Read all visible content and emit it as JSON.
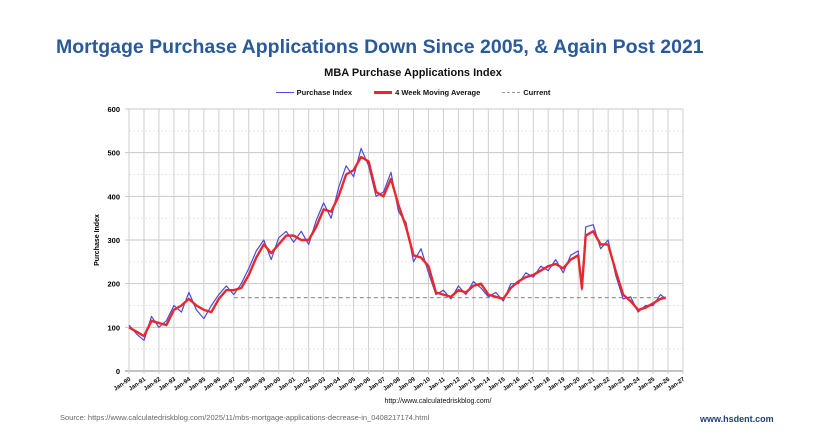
{
  "headline": "Mortgage Purchase Applications Down Since 2005, & Again Post 2021",
  "source": "Source: https://www.calculatedriskblog.com/2025/11/mbs-mortgage-applications-decrease-in_0408217174.html",
  "brand": "www.hsdent.com",
  "chart_data": {
    "type": "line",
    "title": "MBA Purchase Applications Index",
    "xlabel": "http://www.calculatedriskblog.com/",
    "ylabel": "Purchase Index",
    "ylim": [
      0,
      600
    ],
    "yticks": [
      0,
      100,
      200,
      300,
      400,
      500,
      600
    ],
    "xlim": [
      1990,
      2027
    ],
    "xtick_labels": [
      "Jan-90",
      "Jan-91",
      "Jan-92",
      "Jan-93",
      "Jan-94",
      "Jan-95",
      "Jan-96",
      "Jan-97",
      "Jan-98",
      "Jan-99",
      "Jan-00",
      "Jan-01",
      "Jan-02",
      "Jan-03",
      "Jan-04",
      "Jan-05",
      "Jan-06",
      "Jan-07",
      "Jan-08",
      "Jan-09",
      "Jan-10",
      "Jan-11",
      "Jan-12",
      "Jan-13",
      "Jan-14",
      "Jan-15",
      "Jan-16",
      "Jan-17",
      "Jan-18",
      "Jan-19",
      "Jan-20",
      "Jan-21",
      "Jan-22",
      "Jan-23",
      "Jan-24",
      "Jan-25",
      "Jan-26",
      "Jan-27"
    ],
    "grid": true,
    "legend_placement": "top-center",
    "x": [
      1990,
      1990.5,
      1991,
      1991.5,
      1992,
      1992.5,
      1993,
      1993.5,
      1994,
      1994.5,
      1995,
      1995.5,
      1996,
      1996.5,
      1997,
      1997.5,
      1998,
      1998.5,
      1999,
      1999.5,
      2000,
      2000.5,
      2001,
      2001.5,
      2002,
      2002.5,
      2003,
      2003.5,
      2004,
      2004.5,
      2005,
      2005.5,
      2006,
      2006.5,
      2007,
      2007.5,
      2008,
      2008.5,
      2009,
      2009.5,
      2010,
      2010.5,
      2011,
      2011.5,
      2012,
      2012.5,
      2013,
      2013.5,
      2014,
      2014.5,
      2015,
      2015.5,
      2016,
      2016.5,
      2017,
      2017.5,
      2018,
      2018.5,
      2019,
      2019.5,
      2020,
      2020.25,
      2020.5,
      2021,
      2021.5,
      2022,
      2022.5,
      2023,
      2023.5,
      2024,
      2024.5,
      2025,
      2025.5,
      2025.85
    ],
    "series": [
      {
        "name": "Purchase Index",
        "color": "#4a4ae0",
        "values": [
          105,
          85,
          70,
          125,
          100,
          115,
          150,
          135,
          180,
          140,
          120,
          150,
          175,
          195,
          175,
          200,
          235,
          275,
          300,
          255,
          305,
          320,
          295,
          320,
          290,
          345,
          385,
          350,
          420,
          470,
          445,
          510,
          470,
          400,
          410,
          455,
          365,
          340,
          250,
          280,
          225,
          175,
          185,
          165,
          195,
          175,
          205,
          190,
          170,
          180,
          160,
          200,
          200,
          225,
          215,
          240,
          230,
          255,
          225,
          265,
          275,
          185,
          330,
          335,
          280,
          300,
          220,
          165,
          170,
          135,
          150,
          150,
          175,
          165
        ]
      },
      {
        "name": "4 Week Moving Average",
        "color": "#e8282a",
        "values": [
          100,
          90,
          80,
          115,
          110,
          105,
          140,
          150,
          165,
          150,
          140,
          135,
          165,
          185,
          185,
          190,
          220,
          260,
          290,
          270,
          290,
          310,
          310,
          300,
          300,
          330,
          370,
          365,
          400,
          450,
          460,
          490,
          480,
          410,
          400,
          440,
          380,
          330,
          265,
          260,
          240,
          180,
          175,
          170,
          185,
          180,
          195,
          200,
          175,
          170,
          165,
          190,
          205,
          215,
          220,
          230,
          240,
          245,
          235,
          255,
          265,
          190,
          310,
          320,
          290,
          290,
          230,
          175,
          160,
          140,
          145,
          155,
          165,
          168
        ]
      },
      {
        "name": "Current",
        "color": "#999999",
        "style": "dashed",
        "x": [
          1997,
          2025.85
        ],
        "values": [
          168,
          168
        ]
      }
    ]
  }
}
